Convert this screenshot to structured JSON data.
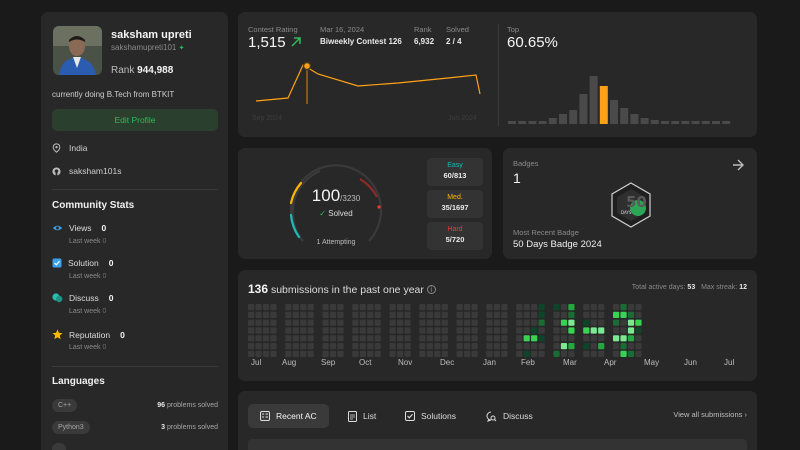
{
  "profile": {
    "name": "saksham upreti",
    "handle": "sakshamupreti101",
    "rank_label": "Rank",
    "rank_value": "944,988",
    "bio": "currently doing B.Tech from BTKIT",
    "edit_label": "Edit Profile",
    "location": "India",
    "github": "saksham101s"
  },
  "community": {
    "title": "Community Stats",
    "stats": [
      {
        "label": "Views",
        "value": "0",
        "sub": "Last week",
        "sub_value": "0",
        "icon": "eye-icon",
        "color": "#3aa0e8"
      },
      {
        "label": "Solution",
        "value": "0",
        "sub": "Last week",
        "sub_value": "0",
        "icon": "solution-icon",
        "color": "#3aa0e8"
      },
      {
        "label": "Discuss",
        "value": "0",
        "sub": "Last week",
        "sub_value": "0",
        "icon": "discuss-icon",
        "color": "#2cbbad"
      },
      {
        "label": "Reputation",
        "value": "0",
        "sub": "Last week",
        "sub_value": "0",
        "icon": "star-icon",
        "color": "#ffb800"
      }
    ]
  },
  "languages": {
    "title": "Languages",
    "items": [
      {
        "name": "C++",
        "count": "96",
        "suffix": "problems solved"
      },
      {
        "name": "Python3",
        "count": "3",
        "suffix": "problems solved"
      }
    ]
  },
  "contest": {
    "rating_label": "Contest Rating",
    "rating": "1,515",
    "date": "Mar 16, 2024",
    "contest_name": "Biweekly Contest 126",
    "rank_label": "Rank",
    "rank": "6,932",
    "solved_label": "Solved",
    "solved": "2 / 4",
    "x_start": "Sep 2024",
    "x_end": "Jun 2024",
    "top_label": "Top",
    "top_value": "60.65%",
    "histogram": [
      3,
      3,
      3,
      3,
      6,
      10,
      14,
      30,
      48,
      38,
      24,
      16,
      10,
      6,
      4,
      3,
      3,
      3,
      3,
      3,
      3,
      3
    ],
    "highlight_index": 9,
    "accent": "#ffa116"
  },
  "solved": {
    "count": "100",
    "total": "/3230",
    "label": "Solved",
    "attempting": "1 Attempting",
    "difficulties": [
      {
        "name": "Easy",
        "value": "60/813",
        "color": "#1cbaba"
      },
      {
        "name": "Med.",
        "value": "35/1697",
        "color": "#ffb700"
      },
      {
        "name": "Hard",
        "value": "5/720",
        "color": "#f63737"
      }
    ]
  },
  "badges": {
    "label": "Badges",
    "count": "1",
    "recent_label": "Most Recent Badge",
    "recent_name": "50 Days Badge 2024",
    "badge_text": "50",
    "badge_sub": "DAYS"
  },
  "heatmap": {
    "count": "136",
    "text": "submissions in the past one year",
    "active_label": "Total active days:",
    "active_value": "53",
    "streak_label": "Max streak:",
    "streak_value": "12",
    "months": [
      "Jul",
      "Aug",
      "Sep",
      "Oct",
      "Nov",
      "Dec",
      "Jan",
      "Feb",
      "Mar",
      "Apr",
      "May",
      "Jun",
      "Jul"
    ]
  },
  "tabs": {
    "items": [
      {
        "label": "Recent AC",
        "icon": "list-check-icon"
      },
      {
        "label": "List",
        "icon": "document-icon"
      },
      {
        "label": "Solutions",
        "icon": "checkbox-icon"
      },
      {
        "label": "Discuss",
        "icon": "discuss-search-icon"
      }
    ],
    "view_all": "View all submissions"
  }
}
